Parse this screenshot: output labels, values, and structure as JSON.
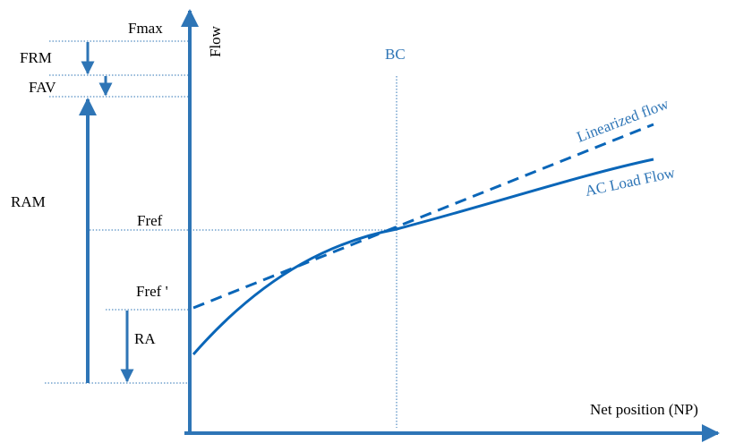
{
  "labels": {
    "fmax": "Fmax",
    "frm": "FRM",
    "fav": "FAV",
    "ram": "RAM",
    "fref": "Fref",
    "fref_prime": "Fref '",
    "ra": "RA",
    "bc": "BC",
    "y_axis": "Flow",
    "x_axis": "Net position (NP)",
    "linearized": "Linearized flow",
    "ac_load": "AC Load Flow"
  },
  "colors": {
    "accent": "#2e75b6",
    "curve": "#0a66b8",
    "text": "#000000"
  }
}
